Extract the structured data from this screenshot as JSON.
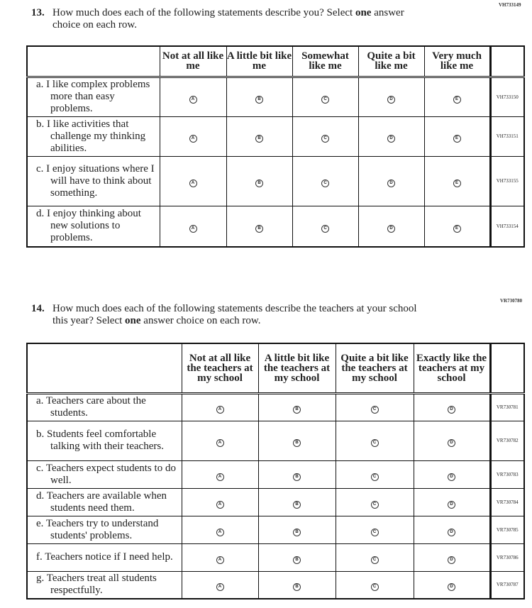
{
  "q13": {
    "code": "VH733149",
    "number": "13.",
    "text_pre": "How much does each of the following statements describe you? Select ",
    "text_bold": "one",
    "text_post": " answer",
    "text_line2": "choice on each row.",
    "columns": [
      "Not at all like me",
      "A little bit like me",
      "Somewhat like me",
      "Quite a bit like me",
      "Very much like me"
    ],
    "letters": [
      "A",
      "B",
      "C",
      "D",
      "E"
    ],
    "rows": [
      {
        "label": "a. I like complex problems more than easy problems.",
        "code": "VH733150"
      },
      {
        "label": "b. I like activities that challenge my thinking abilities.",
        "code": "VH733151"
      },
      {
        "label": "c. I enjoy situations where I will have to think about something.",
        "code": "VH733155"
      },
      {
        "label": "d. I enjoy thinking about new solutions to problems.",
        "code": "VH733154"
      }
    ]
  },
  "q14": {
    "code": "VR730780",
    "number": "14.",
    "text_pre": "How much does each of the following statements describe the teachers at your school",
    "text_line2_pre": "this year? Select ",
    "text_bold": "one",
    "text_post": " answer choice on each row.",
    "columns": [
      "Not at all like the teachers at my school",
      "A little bit like the teachers at my school",
      "Quite a bit like the teachers at my school",
      "Exactly like the teachers at my school"
    ],
    "letters": [
      "A",
      "B",
      "C",
      "D"
    ],
    "rows": [
      {
        "label": "a. Teachers care about the students.",
        "code": "VR730781"
      },
      {
        "label": "b. Students feel comfortable talking with their teachers.",
        "code": "VR730782"
      },
      {
        "label": "c. Teachers expect students to do well.",
        "code": "VR730783"
      },
      {
        "label": "d. Teachers are available when students need them.",
        "code": "VR730784"
      },
      {
        "label": "e. Teachers try to understand students' problems.",
        "code": "VR730785"
      },
      {
        "label": "f. Teachers notice if I need help.",
        "code": "VR730786"
      },
      {
        "label": "g. Teachers treat all students respectfully.",
        "code": "VR730787"
      }
    ]
  }
}
